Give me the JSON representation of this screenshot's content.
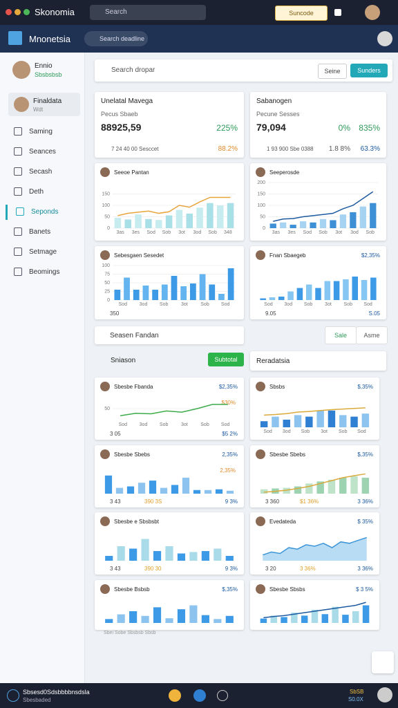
{
  "app": {
    "title": "Skonomia",
    "search": "Search",
    "button": "Suncode"
  },
  "nav": {
    "brand": "Mnonetsia",
    "search": "Search deadline"
  },
  "sidebar": {
    "user": {
      "name": "Ennio",
      "status": "Sbsbsbsb"
    },
    "selected": {
      "name": "Finaldata",
      "sub": "Wdt"
    },
    "items": [
      "Saming",
      "Seances",
      "Secash",
      "Deth",
      "Seponds",
      "Banets",
      "Setmage",
      "Beomings"
    ]
  },
  "toolbar": {
    "search": "Search dropar",
    "button1": "Seine",
    "button2": "Sunders"
  },
  "stats": [
    {
      "title": "Unelatal Mavega",
      "label": "Pecus Sbaeb",
      "value": "88925,59",
      "change": "225%",
      "foot": "7 24 40 00 Sesccet",
      "foot_change": "88.2%"
    },
    {
      "title": "Sabanogen",
      "label": "Pecune Sesses",
      "value": "79,094",
      "change": "0%",
      "change2": "835%",
      "foot": "1 93 900 Sbe 0388",
      "foot_change": "1.8 8%",
      "foot_change2": "63.3%"
    }
  ],
  "filter": {
    "search": "Seasen Fandan",
    "button1": "Sale",
    "button2": "Asme"
  },
  "section": {
    "title": "Sniason",
    "button": "Subtotal",
    "right_title": "Reradatsia"
  },
  "cards": [
    {
      "title": "Seeoe Pantan",
      "bars": [
        45,
        38,
        60,
        40,
        36,
        56,
        80,
        64,
        90,
        110,
        100,
        110
      ],
      "colors": [
        "#c7ecef",
        "#a9dfe6"
      ],
      "line": [
        55,
        65,
        70,
        75,
        65,
        72,
        100,
        92,
        115,
        135,
        135,
        135
      ],
      "line_color": "#e8a43c",
      "ylim": [
        0,
        200
      ],
      "yticks": [
        0,
        50,
        100,
        150
      ],
      "xlabels": [
        "3as",
        "3es",
        "Sod",
        "Sob",
        "3ot",
        "3od",
        "Sob",
        "348"
      ]
    },
    {
      "title": "Seeperosde",
      "bars": [
        20,
        25,
        15,
        30,
        25,
        40,
        35,
        60,
        70,
        95,
        110
      ],
      "colors": [
        "#3d8fd6",
        "#a6d3f2"
      ],
      "line": [
        30,
        40,
        42,
        50,
        55,
        60,
        65,
        85,
        100,
        130,
        160
      ],
      "line_color": "#1c5aa0",
      "ylim": [
        0,
        200
      ],
      "yticks": [
        0,
        50,
        100,
        150,
        200
      ],
      "xlabels": [
        "3as",
        "3es",
        "Sod",
        "Sob",
        "3ot",
        "3od",
        "Sob"
      ]
    },
    {
      "title": "Sebesgaen Sesedet",
      "bars": [
        30,
        65,
        30,
        42,
        30,
        45,
        70,
        40,
        48,
        75,
        45,
        18,
        92
      ],
      "colors": [
        "#3d9ae6",
        "#63b4ef"
      ],
      "ylim": [
        0,
        100
      ],
      "yticks": [
        0,
        25,
        50,
        75,
        100
      ],
      "xlabels": [
        "Sod",
        "3od",
        "Sob",
        "3ot",
        "Sob",
        "Sod"
      ],
      "foot": [
        "350"
      ]
    },
    {
      "title": "Fnan Sbaegeb",
      "tag": "$2,35%",
      "bars": [
        5,
        8,
        10,
        25,
        35,
        45,
        35,
        55,
        55,
        60,
        68,
        58,
        65
      ],
      "colors": [
        "#3d9ae6",
        "#86c6f2"
      ],
      "ylim": [
        0,
        100
      ],
      "xlabels": [
        "Sod",
        "3od",
        "Sob",
        "3ot",
        "Sob",
        "Sod"
      ],
      "foot": [
        "9.05",
        "S.05"
      ]
    },
    {
      "title": "Sbesbe Fbanda",
      "tag": "$2,35%",
      "note": "$30%",
      "line": [
        20,
        30,
        28,
        40,
        35,
        50,
        68,
        68
      ],
      "line_color": "#3cab4a",
      "ylim": [
        0,
        100
      ],
      "yticks": [
        50
      ],
      "xlabels": [
        "Sod",
        "3od",
        "Sob",
        "3ot",
        "Sob",
        "Sod"
      ],
      "foot": [
        "3 05",
        "$5 2%"
      ]
    },
    {
      "title": "Sbsbs",
      "tag": "$,35%",
      "bars": [
        20,
        35,
        25,
        40,
        35,
        55,
        55,
        40,
        35,
        45
      ],
      "colors": [
        "#2f7fd2",
        "#8cc4ef"
      ],
      "line": [
        40,
        42,
        45,
        50,
        52,
        55,
        58,
        60,
        62,
        64
      ],
      "line_color": "#d9a93a",
      "ylim": [
        0,
        100
      ],
      "xlabels": [
        "Sod",
        "3od",
        "Sob",
        "3ot",
        "Sob",
        "Sod"
      ]
    },
    {
      "title": "Sbesbe Sbebs",
      "tag": "2,35%",
      "note": "2,35%",
      "bars": [
        25,
        8,
        10,
        15,
        18,
        8,
        12,
        22,
        5,
        5,
        6,
        4
      ],
      "colors": [
        "#3d9ae6",
        "#8cc4ef"
      ],
      "ylim": [
        0,
        40
      ],
      "foot": [
        "3 43",
        "390 3S",
        "9 3%"
      ]
    },
    {
      "title": "Sbesbe Sbebs",
      "tag": "$,35%",
      "bars": [
        15,
        18,
        20,
        25,
        35,
        42,
        48,
        55,
        60,
        55
      ],
      "colors": [
        "#bfe3c8",
        "#9dd3b0"
      ],
      "line": [
        5,
        8,
        12,
        18,
        25,
        35,
        45,
        55,
        62,
        68
      ],
      "line_color": "#d9a93a",
      "ylim": [
        0,
        100
      ],
      "foot": [
        "3 360",
        "$1 36%",
        "3 36%"
      ]
    },
    {
      "title": "Sbesbe e Sbsbsbt",
      "bars": [
        10,
        30,
        25,
        45,
        20,
        30,
        15,
        18,
        20,
        25,
        10
      ],
      "colors": [
        "#3d9ae6",
        "#a9dbe8"
      ],
      "ylim": [
        0,
        60
      ],
      "foot": [
        "3 43",
        "390 30",
        "9 3%"
      ]
    },
    {
      "title": "Evedateda",
      "tag": "$ 35%",
      "area": [
        20,
        30,
        25,
        45,
        40,
        55,
        50,
        60,
        45,
        65,
        60,
        70,
        80
      ],
      "line_color": "#3b95d8",
      "ylim": [
        0,
        100
      ],
      "foot": [
        "3 20",
        "3 36%",
        "3 36%"
      ]
    },
    {
      "title": "Sbesbe Bsbsb",
      "tag": "$,35%",
      "bars": [
        10,
        22,
        30,
        18,
        40,
        12,
        35,
        45,
        20,
        10,
        18
      ],
      "colors": [
        "#3d9ae6",
        "#8cc4ef"
      ],
      "ylim": [
        0,
        60
      ]
    },
    {
      "title": "Sbesbe Sbsbs",
      "tag": "$ 3 5%",
      "bars": [
        15,
        25,
        20,
        35,
        25,
        45,
        30,
        55,
        28,
        40,
        60
      ],
      "colors": [
        "#3d9ae6",
        "#a9dbe8"
      ],
      "line": [
        18,
        22,
        25,
        30,
        35,
        40,
        45,
        50,
        55,
        60,
        70
      ],
      "line_color": "#1c5aa0",
      "ylim": [
        0,
        80
      ]
    }
  ],
  "footer_note": "Sbei Sobe Sbsbsb Sbsb",
  "bottom": {
    "title": "Sbsesd0Sdsbbbbnsdsla",
    "sub": "Sbesbaded",
    "right1": "SbSB",
    "right2": "S0.0X"
  }
}
